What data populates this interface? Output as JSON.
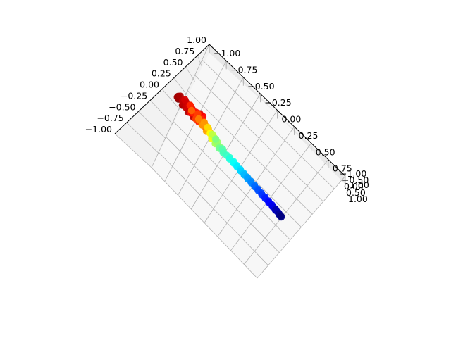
{
  "chart_data": {
    "type": "scatter",
    "projection": "3d",
    "title": "",
    "xlabel": "",
    "ylabel": "",
    "zlabel": "",
    "colormap": "jet",
    "grid": true,
    "pane_color": "#f2f2f2",
    "grid_color": "#b0b0b0",
    "axes": {
      "x": {
        "range": [
          -1.0,
          1.0
        ],
        "ticks": [
          "−1.00",
          "−0.75",
          "−0.50",
          "−0.25",
          "0.00",
          "0.25",
          "0.50",
          "0.75",
          "1.00"
        ]
      },
      "y": {
        "range": [
          -1.0,
          1.0
        ],
        "ticks": [
          "−1.00",
          "−0.75",
          "−0.50",
          "−0.25",
          "0.00",
          "0.25",
          "0.50",
          "0.75",
          "1.00"
        ]
      },
      "z": {
        "range": [
          -1.0,
          1.0
        ],
        "ticks": [
          "−1.00",
          "−0.50",
          "0.00",
          "0.50",
          "1.00"
        ]
      }
    },
    "shape": "guitar point cloud",
    "series": [
      {
        "points": [
          [
            -0.42,
            -0.28,
            0.9
          ],
          [
            -0.38,
            -0.36,
            0.95
          ],
          [
            -0.3,
            -0.42,
            0.92
          ],
          [
            -0.22,
            -0.4,
            0.88
          ],
          [
            -0.16,
            -0.34,
            0.86
          ],
          [
            -0.44,
            -0.18,
            0.9
          ],
          [
            -0.4,
            -0.1,
            0.85
          ],
          [
            -0.34,
            -0.04,
            0.82
          ],
          [
            -0.26,
            0.0,
            0.8
          ],
          [
            -0.2,
            -0.06,
            0.78
          ],
          [
            -0.14,
            -0.16,
            0.76
          ],
          [
            -0.3,
            -0.26,
            0.84
          ],
          [
            -0.24,
            -0.2,
            0.8
          ],
          [
            -0.36,
            -0.2,
            0.86
          ],
          [
            -0.32,
            -0.32,
            0.88
          ],
          [
            -0.46,
            -0.02,
            0.88
          ],
          [
            -0.4,
            0.06,
            0.84
          ],
          [
            -0.32,
            0.1,
            0.8
          ],
          [
            -0.22,
            0.1,
            0.76
          ],
          [
            -0.16,
            0.04,
            0.72
          ],
          [
            -0.12,
            -0.06,
            0.7
          ],
          [
            -0.28,
            0.04,
            0.7
          ],
          [
            -0.2,
            -0.1,
            0.66
          ],
          [
            -0.26,
            -0.14,
            0.74
          ],
          [
            -0.18,
            0.0,
            0.64
          ],
          [
            -0.44,
            0.14,
            0.82
          ],
          [
            -0.38,
            0.2,
            0.78
          ],
          [
            -0.3,
            0.22,
            0.74
          ],
          [
            -0.22,
            0.2,
            0.7
          ],
          [
            -0.14,
            0.14,
            0.66
          ],
          [
            -0.1,
            0.06,
            0.62
          ],
          [
            -0.34,
            0.14,
            0.6
          ],
          [
            -0.24,
            0.16,
            0.56
          ],
          [
            -0.16,
            0.08,
            0.52
          ],
          [
            -0.4,
            0.26,
            0.7
          ],
          [
            -0.3,
            0.3,
            0.66
          ],
          [
            -0.2,
            0.28,
            0.62
          ],
          [
            -0.12,
            0.22,
            0.58
          ],
          [
            -0.06,
            0.12,
            0.56
          ],
          [
            -0.28,
            0.34,
            0.8
          ],
          [
            -0.08,
            0.02,
            0.5
          ],
          [
            -0.14,
            0.3,
            0.46
          ],
          [
            -0.04,
            0.16,
            0.4
          ],
          [
            -0.22,
            0.36,
            0.52
          ],
          [
            -0.1,
            0.26,
            0.36
          ],
          [
            -0.02,
            0.08,
            0.34
          ],
          [
            -0.18,
            0.4,
            0.42
          ],
          [
            -0.06,
            0.32,
            0.3
          ],
          [
            0.0,
            0.2,
            0.28
          ],
          [
            -0.26,
            0.42,
            0.76
          ],
          [
            0.02,
            0.12,
            0.22
          ],
          [
            -0.02,
            0.36,
            0.2
          ],
          [
            0.04,
            0.26,
            0.18
          ],
          [
            -0.12,
            0.42,
            0.26
          ],
          [
            0.06,
            0.18,
            0.14
          ],
          [
            0.08,
            0.3,
            0.12
          ],
          [
            0.04,
            0.4,
            0.1
          ],
          [
            0.1,
            0.24,
            0.08
          ],
          [
            -0.08,
            0.46,
            0.16
          ],
          [
            0.12,
            0.34,
            0.06
          ],
          [
            0.14,
            0.42,
            0.04
          ],
          [
            0.16,
            0.36,
            0.02
          ],
          [
            0.18,
            0.48,
            0.0
          ],
          [
            0.2,
            0.42,
            -0.02
          ],
          [
            0.22,
            0.5,
            -0.04
          ],
          [
            0.24,
            0.46,
            -0.06
          ],
          [
            0.26,
            0.54,
            -0.08
          ],
          [
            0.28,
            0.5,
            -0.1
          ],
          [
            0.3,
            0.58,
            -0.12
          ],
          [
            0.32,
            0.54,
            -0.14
          ],
          [
            0.34,
            0.62,
            -0.16
          ],
          [
            0.36,
            0.58,
            -0.18
          ],
          [
            0.38,
            0.66,
            -0.2
          ],
          [
            0.4,
            0.62,
            -0.22
          ],
          [
            0.42,
            0.7,
            -0.24
          ],
          [
            0.44,
            0.66,
            -0.26
          ],
          [
            0.46,
            0.74,
            -0.28
          ],
          [
            0.48,
            0.7,
            -0.3
          ],
          [
            0.5,
            0.78,
            -0.32
          ],
          [
            0.52,
            0.74,
            -0.34
          ],
          [
            0.54,
            0.82,
            -0.36
          ],
          [
            0.56,
            0.78,
            -0.38
          ],
          [
            0.58,
            0.86,
            -0.4
          ],
          [
            0.6,
            0.82,
            -0.42
          ],
          [
            0.62,
            0.9,
            -0.44
          ],
          [
            0.64,
            0.86,
            -0.46
          ],
          [
            0.66,
            0.92,
            -0.48
          ],
          [
            0.68,
            0.88,
            -0.5
          ],
          [
            0.7,
            0.94,
            -0.52
          ],
          [
            0.66,
            0.96,
            -0.54
          ],
          [
            0.72,
            0.92,
            -0.56
          ],
          [
            0.7,
            0.98,
            -0.58
          ],
          [
            0.74,
            0.96,
            -0.6
          ],
          [
            0.72,
            1.0,
            -0.62
          ],
          [
            0.68,
            0.9,
            -0.5
          ]
        ]
      }
    ]
  }
}
